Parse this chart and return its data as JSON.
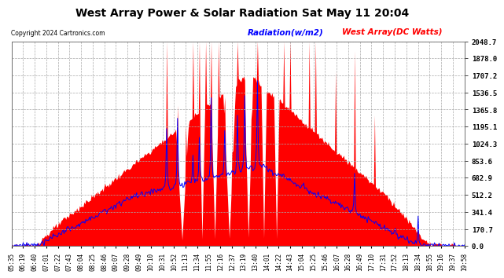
{
  "title": "West Array Power & Solar Radiation Sat May 11 20:04",
  "copyright": "Copyright 2024 Cartronics.com",
  "legend_radiation": "Radiation(w/m2)",
  "legend_west": "West Array(DC Watts)",
  "ylabel_values": [
    0.0,
    170.7,
    341.4,
    512.2,
    682.9,
    853.6,
    1024.3,
    1195.1,
    1365.8,
    1536.5,
    1707.2,
    1878.0,
    2048.7
  ],
  "ymax": 2048.7,
  "ymin": 0.0,
  "background_color": "#ffffff",
  "plot_bg_color": "#ffffff",
  "grid_color": "#aaaaaa",
  "red_fill_color": "#ff0000",
  "blue_line_color": "#0000ff",
  "x_labels": [
    "05:35",
    "06:19",
    "06:40",
    "07:01",
    "07:22",
    "07:43",
    "08:04",
    "08:25",
    "08:46",
    "09:07",
    "09:28",
    "09:49",
    "10:10",
    "10:31",
    "10:52",
    "11:13",
    "11:34",
    "11:55",
    "12:16",
    "12:37",
    "13:19",
    "13:40",
    "14:01",
    "14:22",
    "14:43",
    "15:04",
    "15:25",
    "15:46",
    "16:07",
    "16:28",
    "16:49",
    "17:10",
    "17:31",
    "17:52",
    "18:13",
    "18:34",
    "18:55",
    "19:16",
    "19:37",
    "19:58"
  ]
}
